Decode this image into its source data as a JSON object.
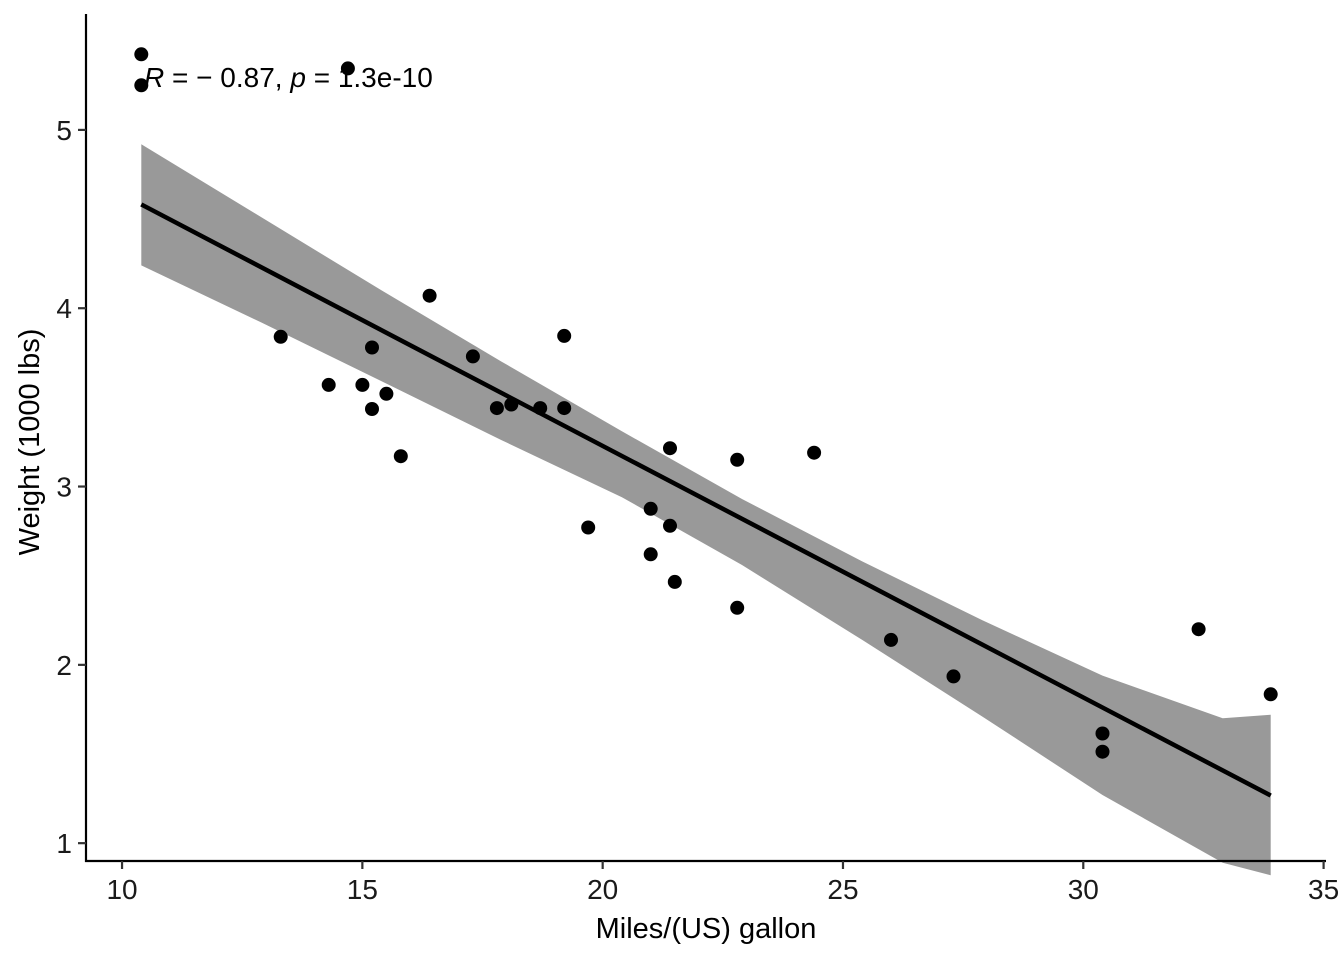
{
  "chart_data": {
    "type": "scatter",
    "title": "",
    "xlabel": "Miles/(US) gallon",
    "ylabel": "Weight (1000 lbs)",
    "xlim": [
      9.25,
      35.05
    ],
    "ylim": [
      0.9,
      5.65
    ],
    "x_ticks": [
      10,
      15,
      20,
      25,
      30,
      35
    ],
    "y_ticks": [
      1,
      2,
      3,
      4,
      5
    ],
    "x_tick_labels": [
      "10",
      "15",
      "20",
      "25",
      "30",
      "35"
    ],
    "y_tick_labels": [
      "1",
      "2",
      "3",
      "4",
      "5"
    ],
    "grid": false,
    "legend": "none",
    "points": [
      {
        "x": 21.0,
        "y": 2.62
      },
      {
        "x": 21.0,
        "y": 2.875
      },
      {
        "x": 22.8,
        "y": 2.32
      },
      {
        "x": 21.4,
        "y": 3.215
      },
      {
        "x": 18.7,
        "y": 3.44
      },
      {
        "x": 18.1,
        "y": 3.46
      },
      {
        "x": 14.3,
        "y": 3.57
      },
      {
        "x": 24.4,
        "y": 3.19
      },
      {
        "x": 22.8,
        "y": 3.15
      },
      {
        "x": 19.2,
        "y": 3.44
      },
      {
        "x": 17.8,
        "y": 3.44
      },
      {
        "x": 16.4,
        "y": 4.07
      },
      {
        "x": 17.3,
        "y": 3.73
      },
      {
        "x": 15.2,
        "y": 3.78
      },
      {
        "x": 10.4,
        "y": 5.25
      },
      {
        "x": 10.4,
        "y": 5.424
      },
      {
        "x": 14.7,
        "y": 5.345
      },
      {
        "x": 32.4,
        "y": 2.2
      },
      {
        "x": 30.4,
        "y": 1.615
      },
      {
        "x": 33.9,
        "y": 1.835
      },
      {
        "x": 21.5,
        "y": 2.465
      },
      {
        "x": 15.5,
        "y": 3.52
      },
      {
        "x": 15.2,
        "y": 3.435
      },
      {
        "x": 13.3,
        "y": 3.84
      },
      {
        "x": 19.2,
        "y": 3.845
      },
      {
        "x": 27.3,
        "y": 1.935
      },
      {
        "x": 26.0,
        "y": 2.14
      },
      {
        "x": 30.4,
        "y": 1.513
      },
      {
        "x": 15.8,
        "y": 3.17
      },
      {
        "x": 19.7,
        "y": 2.77
      },
      {
        "x": 15.0,
        "y": 3.57
      },
      {
        "x": 21.4,
        "y": 2.78
      }
    ],
    "fit_line": {
      "type": "linear",
      "x": [
        10.4,
        33.9
      ],
      "y": [
        4.582,
        1.267
      ]
    },
    "confidence_band": {
      "x": [
        10.4,
        12.9,
        15.4,
        17.9,
        20.4,
        22.9,
        25.4,
        27.9,
        30.4,
        32.9,
        33.9
      ],
      "y_upper": [
        4.92,
        4.51,
        4.1,
        3.7,
        3.31,
        2.93,
        2.58,
        2.25,
        1.94,
        1.7,
        1.72
      ],
      "y_lower": [
        4.24,
        3.92,
        3.59,
        3.26,
        2.94,
        2.56,
        2.14,
        1.71,
        1.27,
        0.89,
        0.82
      ]
    },
    "annotation": {
      "r_symbol": "R",
      "r_value_text": " = − 0.87, ",
      "p_symbol": "p",
      "p_value_text": " = 1.3e-10"
    }
  }
}
